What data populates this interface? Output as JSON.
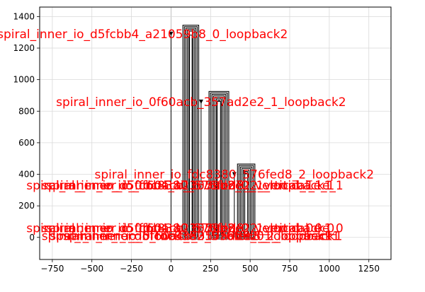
{
  "chart_data": {
    "type": "layout-plot",
    "title": "",
    "xlabel": "",
    "ylabel": "",
    "xlim": [
      -830,
      1390
    ],
    "ylim": [
      -140,
      1460
    ],
    "grid": true,
    "x_ticks": [
      {
        "value": -750,
        "label": "−750"
      },
      {
        "value": -500,
        "label": "−500"
      },
      {
        "value": -250,
        "label": "−250"
      },
      {
        "value": 0,
        "label": "0"
      },
      {
        "value": 250,
        "label": "250"
      },
      {
        "value": 500,
        "label": "500"
      },
      {
        "value": 750,
        "label": "750"
      },
      {
        "value": 1000,
        "label": "1000"
      },
      {
        "value": 1250,
        "label": "1250"
      }
    ],
    "y_ticks": [
      {
        "value": 0,
        "label": "0"
      },
      {
        "value": 200,
        "label": "200"
      },
      {
        "value": 400,
        "label": "400"
      },
      {
        "value": 600,
        "label": "600"
      },
      {
        "value": 800,
        "label": "800"
      },
      {
        "value": 1000,
        "label": "1000"
      },
      {
        "value": 1200,
        "label": "1200"
      },
      {
        "value": 1400,
        "label": "1400"
      }
    ],
    "colors": {
      "annotation": "#ff0000",
      "geometry": "#000000",
      "grid": "#d9d9d9",
      "axis_zero": "#b0b0b0"
    },
    "spirals": [
      {
        "x1": 75,
        "x2": 175,
        "bottom": -10,
        "top": 1345
      },
      {
        "x1": 240,
        "x2": 365,
        "bottom": -10,
        "top": 925
      },
      {
        "x1": 420,
        "x2": 530,
        "bottom": -10,
        "top": 465
      }
    ],
    "wires": [
      {
        "x": 0,
        "y1": 0,
        "y2": 1280
      },
      {
        "x": 190,
        "y1": 0,
        "y2": 860
      },
      {
        "x": 400,
        "y1": 0,
        "y2": 400
      }
    ],
    "markers": [
      {
        "x": 0,
        "y": 1290
      },
      {
        "x": 190,
        "y": 860
      },
      {
        "x": 400,
        "y": 400
      }
    ],
    "annotations": [
      {
        "text": "spiral_inner_io_d5fcbb4_a21059b8_0_loopback2",
        "x": -180,
        "y": 1290
      },
      {
        "text": "spiral_inner_io_0f60acb_357ad2e2_1_loopback2",
        "x": 190,
        "y": 860
      },
      {
        "text": "spiral_inner_io_fdc8380_576fed8_2_loopback2",
        "x": 400,
        "y": 400
      },
      {
        "text": "spiral_inner_io_fdc8380_576fed8_2_vertical_1e_1",
        "x": 150,
        "y": 330
      },
      {
        "text": "spiral_inner_io_0f60acb_357ad2e2_1_loopback1",
        "x": 100,
        "y": 330
      },
      {
        "text": "spiral_inner_io_d5fcbb4_a21059b8_0_vertical_1e_1",
        "x": 60,
        "y": 330
      },
      {
        "text": "spiral_inner_io_fdc8380_576fed8_2_vertical_0e_0",
        "x": 150,
        "y": 60
      },
      {
        "text": "spiral_inner_io_0f60acb_357ad2e2_1_loopback1",
        "x": 100,
        "y": 60
      },
      {
        "text": "spiral_inner_io_d5fcbb4_a21059b8_0_vertical_0e_0",
        "x": 60,
        "y": 60
      },
      {
        "text": "spiral_inner_io_fdc8380_576fed8_2_loopback1",
        "x": 200,
        "y": 10
      },
      {
        "text": "spiral_inner_io_0f60acb_357ad2e2_1_loopback1",
        "x": 150,
        "y": 10
      },
      {
        "text": "spiral_inner_io_d5fcbb4_a21059b8_0_loopback1",
        "x": 100,
        "y": 10
      }
    ]
  }
}
